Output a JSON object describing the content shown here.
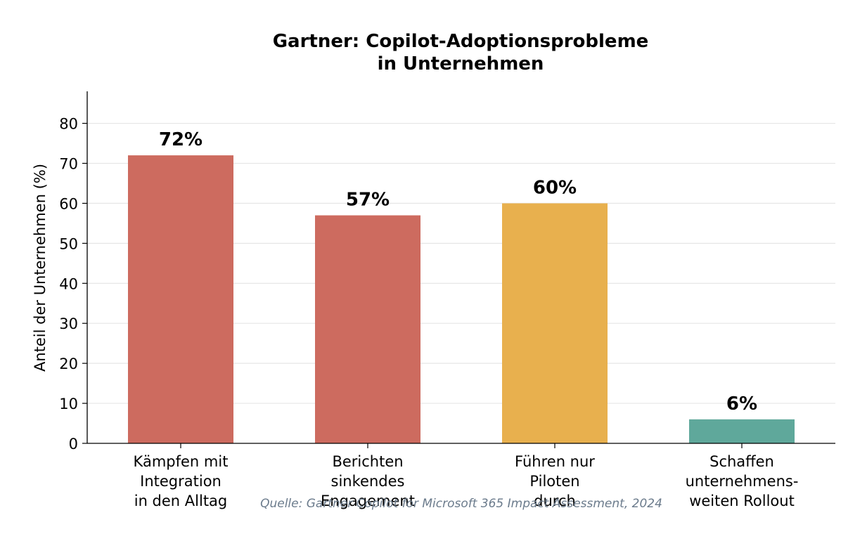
{
  "chart_data": {
    "type": "bar",
    "title_lines": [
      "Gartner: Copilot-Adoptionsprobleme",
      "in Unternehmen"
    ],
    "ylabel": "Anteil der Unternehmen (%)",
    "xlabel": "",
    "ylim": [
      0,
      88
    ],
    "yticks": [
      0,
      10,
      20,
      30,
      40,
      50,
      60,
      70,
      80
    ],
    "grid": "horizontal",
    "categories": [
      [
        "Kämpfen mit",
        "Integration",
        "in den Alltag"
      ],
      [
        "Berichten",
        "sinkendes",
        "Engagement"
      ],
      [
        "Führen nur",
        "Piloten",
        "durch"
      ],
      [
        "Schaffen",
        "unternehmens-",
        "weiten Rollout"
      ]
    ],
    "values": [
      72,
      57,
      60,
      6
    ],
    "value_labels": [
      "72%",
      "57%",
      "60%",
      "6%"
    ],
    "colors": [
      "#cd6b5f",
      "#cd6b5f",
      "#e8b04e",
      "#5fa89b"
    ],
    "source": "Quelle: Gartner Copilot for Microsoft 365 Impact Assessment, 2024"
  }
}
